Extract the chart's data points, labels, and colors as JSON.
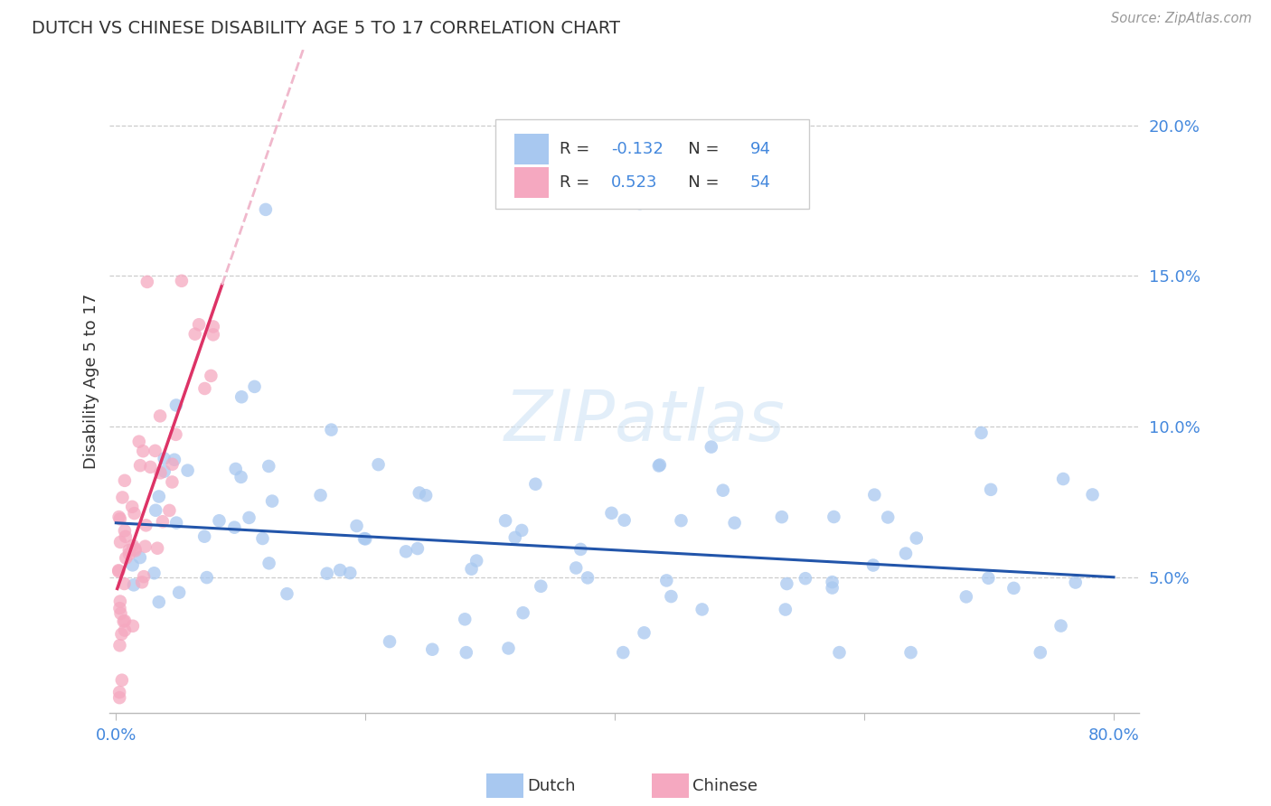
{
  "title": "DUTCH VS CHINESE DISABILITY AGE 5 TO 17 CORRELATION CHART",
  "source_text": "Source: ZipAtlas.com",
  "ylabel": "Disability Age 5 to 17",
  "x_min": -0.005,
  "x_max": 0.82,
  "y_min": 0.005,
  "y_max": 0.225,
  "yticks": [
    0.05,
    0.1,
    0.15,
    0.2
  ],
  "ytick_labels": [
    "5.0%",
    "10.0%",
    "15.0%",
    "20.0%"
  ],
  "xtick_positions": [
    0.0,
    0.2,
    0.4,
    0.6,
    0.8
  ],
  "watermark": "ZIPatlas",
  "legend_dutch_R": "-0.132",
  "legend_dutch_N": "94",
  "legend_chinese_R": "0.523",
  "legend_chinese_N": "54",
  "dutch_color": "#a8c8f0",
  "chinese_color": "#f5a8c0",
  "dutch_line_color": "#2255aa",
  "chinese_line_color": "#dd3366",
  "chinese_dashed_color": "#f0b8cc",
  "background_color": "#ffffff",
  "grid_color": "#cccccc",
  "axis_label_color": "#4488dd",
  "text_color": "#333333",
  "source_color": "#999999",
  "legend_r_color": "#333333",
  "legend_n_color": "#4488dd"
}
